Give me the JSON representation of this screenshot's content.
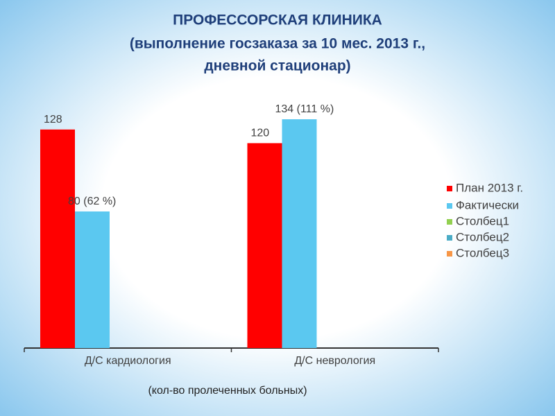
{
  "chart_data": {
    "type": "bar",
    "title": [
      "ПРОФЕССОРСКАЯ КЛИНИКА",
      "(выполнение госзаказа за 10 мес. 2013 г.,",
      "дневной стационар)"
    ],
    "caption": "(кол-во пролеченных больных)",
    "categories": [
      "Д/С кардиология",
      "Д/С неврология"
    ],
    "series": [
      {
        "name": "План 2013 г.",
        "color": "#ff0000",
        "values": [
          128,
          120
        ]
      },
      {
        "name": "Фактически",
        "color": "#5bc8f0",
        "values": [
          80,
          134
        ],
        "value_labels": [
          "80 (62 %)",
          "134 (111 %)"
        ]
      },
      {
        "name": "Столбец1",
        "color": "#92d050",
        "values": [
          null,
          null
        ]
      },
      {
        "name": "Столбец2",
        "color": "#4bacc6",
        "values": [
          null,
          null
        ]
      },
      {
        "name": "Столбец3",
        "color": "#f79646",
        "values": [
          null,
          null
        ]
      }
    ],
    "legend": "right"
  }
}
